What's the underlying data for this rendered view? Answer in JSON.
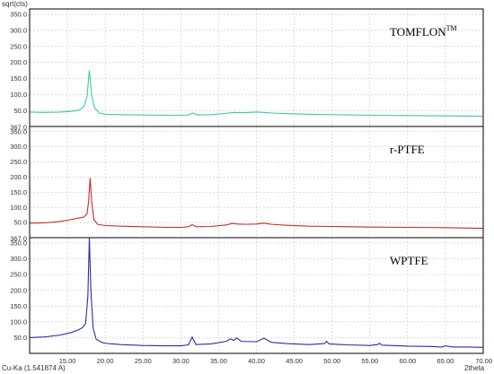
{
  "chart_data": {
    "type": "line",
    "y_axis_title": "sqrt(cts)",
    "x_axis_title": "2theta",
    "x_axis_source": "Cu-Ka (1.541874 A)",
    "xlim": [
      10.0,
      70.0
    ],
    "ylim": [
      0.0,
      367.0
    ],
    "x_ticks": [
      "15.00",
      "20.00",
      "25.00",
      "30.00",
      "35.00",
      "40.00",
      "45.00",
      "50.00",
      "55.00",
      "60.00",
      "65.00",
      "70.00"
    ],
    "y_ticks": [
      "50.0",
      "100.0",
      "150.0",
      "200.0",
      "250.0",
      "300.0",
      "350.0"
    ],
    "y_top_label": "367.0",
    "grid": true,
    "panels": [
      {
        "label": "TOMFLON",
        "label_superscript": "TM",
        "color": "#3cc9a5",
        "points": [
          [
            10.0,
            45
          ],
          [
            12.0,
            44
          ],
          [
            14.0,
            45
          ],
          [
            15.5,
            47
          ],
          [
            16.5,
            51
          ],
          [
            17.2,
            62
          ],
          [
            17.6,
            95
          ],
          [
            17.9,
            175
          ],
          [
            18.2,
            100
          ],
          [
            18.6,
            58
          ],
          [
            19.2,
            42
          ],
          [
            20.0,
            38
          ],
          [
            22.0,
            37
          ],
          [
            25.0,
            36
          ],
          [
            28.0,
            35
          ],
          [
            30.0,
            35
          ],
          [
            31.0,
            36
          ],
          [
            31.6,
            42
          ],
          [
            32.2,
            36
          ],
          [
            34.0,
            37
          ],
          [
            36.0,
            41
          ],
          [
            37.0,
            44
          ],
          [
            38.0,
            43
          ],
          [
            39.0,
            44
          ],
          [
            40.0,
            45
          ],
          [
            41.0,
            44
          ],
          [
            42.0,
            42
          ],
          [
            44.0,
            40
          ],
          [
            47.0,
            38
          ],
          [
            50.0,
            37
          ],
          [
            55.0,
            35
          ],
          [
            60.0,
            34
          ],
          [
            65.0,
            33
          ],
          [
            70.0,
            32
          ]
        ]
      },
      {
        "label": "r-PTFE",
        "label_superscript": "",
        "color": "#c62b2b",
        "points": [
          [
            10.0,
            48
          ],
          [
            12.0,
            49
          ],
          [
            14.0,
            53
          ],
          [
            15.5,
            60
          ],
          [
            16.5,
            65
          ],
          [
            17.2,
            68
          ],
          [
            17.6,
            80
          ],
          [
            17.8,
            120
          ],
          [
            18.0,
            197
          ],
          [
            18.2,
            120
          ],
          [
            18.5,
            60
          ],
          [
            19.0,
            44
          ],
          [
            20.0,
            40
          ],
          [
            22.0,
            38
          ],
          [
            25.0,
            36
          ],
          [
            28.0,
            34
          ],
          [
            30.0,
            34
          ],
          [
            31.0,
            36
          ],
          [
            31.5,
            43
          ],
          [
            32.0,
            36
          ],
          [
            34.0,
            37
          ],
          [
            36.0,
            42
          ],
          [
            36.8,
            47
          ],
          [
            37.5,
            45
          ],
          [
            38.5,
            44
          ],
          [
            40.0,
            45
          ],
          [
            41.0,
            48
          ],
          [
            42.0,
            44
          ],
          [
            44.0,
            41
          ],
          [
            47.0,
            38
          ],
          [
            50.0,
            37
          ],
          [
            55.0,
            35
          ],
          [
            60.0,
            34
          ],
          [
            65.0,
            33
          ],
          [
            70.0,
            31
          ]
        ]
      },
      {
        "label": "WPTFE",
        "label_superscript": "",
        "color": "#2b2baa",
        "points": [
          [
            10.0,
            50
          ],
          [
            12.0,
            52
          ],
          [
            14.0,
            58
          ],
          [
            15.5,
            66
          ],
          [
            16.5,
            75
          ],
          [
            17.0,
            82
          ],
          [
            17.4,
            95
          ],
          [
            17.7,
            180
          ],
          [
            17.9,
            367
          ],
          [
            18.1,
            200
          ],
          [
            18.4,
            80
          ],
          [
            18.8,
            45
          ],
          [
            19.5,
            35
          ],
          [
            20.0,
            32
          ],
          [
            22.0,
            28
          ],
          [
            25.0,
            25
          ],
          [
            28.0,
            24
          ],
          [
            30.0,
            24
          ],
          [
            31.0,
            27
          ],
          [
            31.5,
            52
          ],
          [
            32.0,
            28
          ],
          [
            34.0,
            30
          ],
          [
            36.0,
            38
          ],
          [
            36.6,
            46
          ],
          [
            37.0,
            41
          ],
          [
            37.4,
            49
          ],
          [
            38.0,
            38
          ],
          [
            40.0,
            37
          ],
          [
            41.0,
            48
          ],
          [
            42.0,
            35
          ],
          [
            44.0,
            31
          ],
          [
            47.0,
            28
          ],
          [
            49.0,
            31
          ],
          [
            49.3,
            38
          ],
          [
            49.6,
            30
          ],
          [
            52.0,
            27
          ],
          [
            55.0,
            25
          ],
          [
            56.0,
            28
          ],
          [
            56.3,
            32
          ],
          [
            56.6,
            26
          ],
          [
            60.0,
            23
          ],
          [
            63.0,
            22
          ],
          [
            64.5,
            20
          ],
          [
            65.0,
            24
          ],
          [
            66.0,
            20
          ],
          [
            68.0,
            20
          ],
          [
            70.0,
            19
          ]
        ]
      }
    ]
  }
}
